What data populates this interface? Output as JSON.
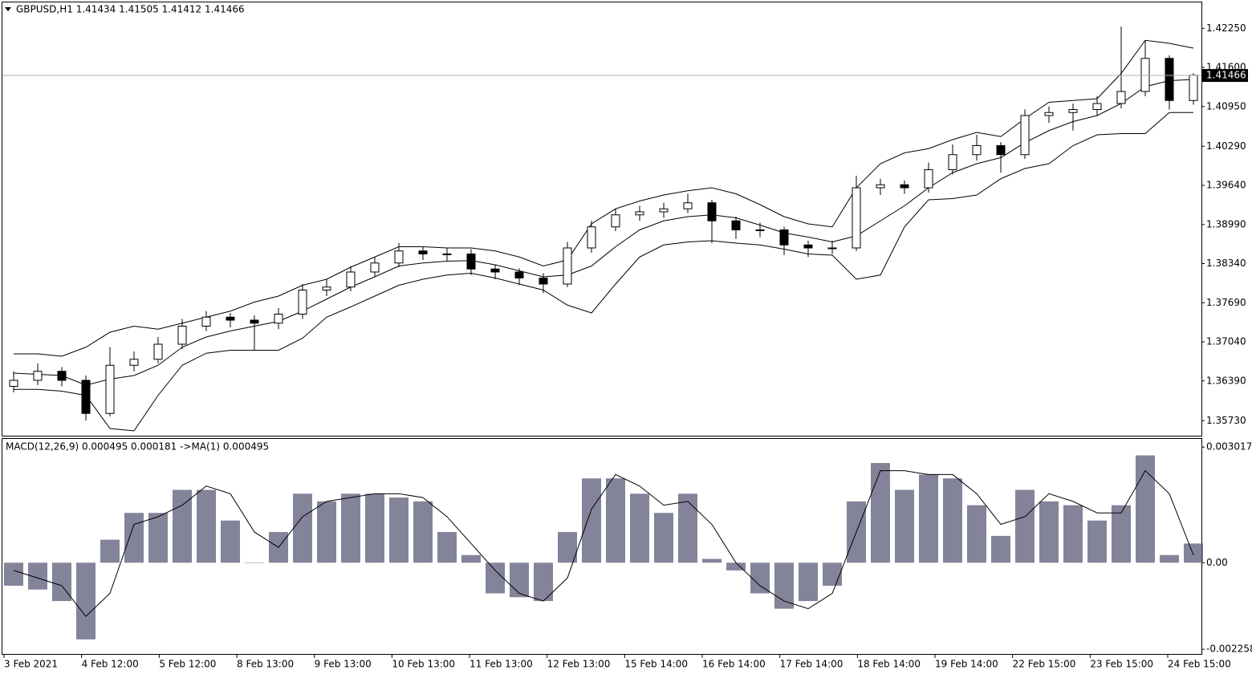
{
  "chart_data": [
    {
      "type": "candlestick",
      "title": "GBPUSD,H1  1.41434 1.41505 1.41412 1.41466",
      "open": [
        1.363,
        1.364,
        1.3655,
        1.364,
        1.3585,
        1.3665,
        1.3675,
        1.37,
        1.373,
        1.3745,
        1.374,
        1.3735,
        1.375,
        1.379,
        1.3795,
        1.382,
        1.3835,
        1.3855,
        1.385,
        1.385,
        1.3825,
        1.382,
        1.381,
        1.38,
        1.386,
        1.3895,
        1.3915,
        1.392,
        1.3925,
        1.3935,
        1.3905,
        1.389,
        1.389,
        1.3865,
        1.386,
        1.386,
        1.396,
        1.3965,
        1.396,
        1.399,
        1.4015,
        1.403,
        1.4015,
        1.408,
        1.4085,
        1.409,
        1.41,
        1.412,
        1.4175,
        1.4105
      ],
      "high": [
        1.3655,
        1.3668,
        1.3662,
        1.3648,
        1.3695,
        1.3688,
        1.3712,
        1.3742,
        1.3755,
        1.3752,
        1.3748,
        1.376,
        1.38,
        1.3808,
        1.383,
        1.3845,
        1.3868,
        1.3862,
        1.386,
        1.3858,
        1.3832,
        1.3826,
        1.3818,
        1.387,
        1.3905,
        1.3925,
        1.393,
        1.3935,
        1.395,
        1.394,
        1.3912,
        1.3902,
        1.3895,
        1.3872,
        1.3872,
        1.398,
        1.3975,
        1.3972,
        1.4002,
        1.4032,
        1.4048,
        1.4036,
        1.409,
        1.4095,
        1.41,
        1.4112,
        1.4228,
        1.4205,
        1.418,
        1.415
      ],
      "low": [
        1.362,
        1.3632,
        1.363,
        1.3573,
        1.358,
        1.3655,
        1.3668,
        1.3692,
        1.3722,
        1.3728,
        1.369,
        1.3725,
        1.3742,
        1.378,
        1.3788,
        1.3812,
        1.3828,
        1.384,
        1.3838,
        1.3815,
        1.3808,
        1.3798,
        1.3785,
        1.3795,
        1.3852,
        1.3888,
        1.3905,
        1.391,
        1.3918,
        1.3868,
        1.3875,
        1.3878,
        1.3848,
        1.3845,
        1.385,
        1.3855,
        1.3948,
        1.395,
        1.3952,
        1.3982,
        1.4005,
        1.3985,
        1.4008,
        1.4068,
        1.4055,
        1.408,
        1.4092,
        1.4112,
        1.409,
        1.4098
      ],
      "close": [
        1.364,
        1.3655,
        1.364,
        1.3585,
        1.3665,
        1.3675,
        1.37,
        1.373,
        1.3745,
        1.374,
        1.3735,
        1.375,
        1.379,
        1.3795,
        1.382,
        1.3835,
        1.3855,
        1.385,
        1.385,
        1.3825,
        1.382,
        1.381,
        1.38,
        1.386,
        1.3895,
        1.3915,
        1.392,
        1.3925,
        1.3935,
        1.3905,
        1.389,
        1.389,
        1.3865,
        1.386,
        1.386,
        1.396,
        1.3965,
        1.396,
        1.399,
        1.4015,
        1.403,
        1.4015,
        1.408,
        1.4085,
        1.409,
        1.41,
        1.412,
        1.4175,
        1.4105,
        1.4147
      ],
      "lines": [
        {
          "color": "#000000",
          "values": [
            1.3684,
            1.3684,
            1.368,
            1.3695,
            1.372,
            1.373,
            1.3725,
            1.3735,
            1.3745,
            1.3755,
            1.377,
            1.378,
            1.3798,
            1.3808,
            1.3828,
            1.3845,
            1.3862,
            1.3862,
            1.386,
            1.386,
            1.3855,
            1.3845,
            1.383,
            1.384,
            1.39,
            1.3925,
            1.3938,
            1.3948,
            1.3955,
            1.396,
            1.395,
            1.3932,
            1.3912,
            1.39,
            1.3895,
            1.396,
            1.4,
            1.4018,
            1.4025,
            1.404,
            1.4052,
            1.4045,
            1.4075,
            1.4102,
            1.4105,
            1.4108,
            1.415,
            1.4205,
            1.42,
            1.4192
          ]
        },
        {
          "color": "#000000",
          "values": [
            1.3652,
            1.365,
            1.3648,
            1.3632,
            1.3642,
            1.3648,
            1.3665,
            1.3695,
            1.3712,
            1.3722,
            1.373,
            1.3738,
            1.3755,
            1.3775,
            1.3795,
            1.3812,
            1.383,
            1.3835,
            1.3838,
            1.3839,
            1.3832,
            1.3822,
            1.3812,
            1.3815,
            1.383,
            1.3862,
            1.389,
            1.3905,
            1.3912,
            1.3915,
            1.391,
            1.3898,
            1.3885,
            1.3878,
            1.387,
            1.388,
            1.3905,
            1.393,
            1.396,
            1.3985,
            1.4,
            1.401,
            1.4035,
            1.4055,
            1.407,
            1.408,
            1.41,
            1.4128,
            1.4138,
            1.414
          ]
        },
        {
          "color": "#000000",
          "values": [
            1.3625,
            1.3625,
            1.3622,
            1.3615,
            1.356,
            1.3556,
            1.3615,
            1.3665,
            1.3685,
            1.369,
            1.369,
            1.369,
            1.371,
            1.3745,
            1.3762,
            1.378,
            1.3798,
            1.3808,
            1.3815,
            1.3818,
            1.381,
            1.38,
            1.379,
            1.3765,
            1.3752,
            1.38,
            1.3845,
            1.3865,
            1.387,
            1.3872,
            1.3868,
            1.3865,
            1.3858,
            1.385,
            1.3848,
            1.3808,
            1.3815,
            1.3895,
            1.394,
            1.3942,
            1.3948,
            1.3975,
            1.3992,
            1.4,
            1.403,
            1.4048,
            1.405,
            1.405,
            1.4085,
            1.4085
          ]
        }
      ],
      "current_price": 1.41466,
      "ylim": [
        1.3548,
        1.4268
      ],
      "yticks": [
        {
          "value": 1.4225,
          "label": "1.42250"
        },
        {
          "value": 1.416,
          "label": "1.41600"
        },
        {
          "value": 1.4095,
          "label": "1.40950"
        },
        {
          "value": 1.4029,
          "label": "1.40290"
        },
        {
          "value": 1.3964,
          "label": "1.39640"
        },
        {
          "value": 1.3899,
          "label": "1.38990"
        },
        {
          "value": 1.3834,
          "label": "1.38340"
        },
        {
          "value": 1.3769,
          "label": "1.37690"
        },
        {
          "value": 1.3704,
          "label": "1.37040"
        },
        {
          "value": 1.3639,
          "label": "1.36390"
        },
        {
          "value": 1.3573,
          "label": "1.35730"
        }
      ]
    },
    {
      "type": "macd",
      "title": "MACD(12,26,9) 0.000495 0.000181  ->MA(1) 0.000495",
      "histogram": {
        "color": "#5a5a78",
        "values": [
          -0.0006,
          -0.0007,
          -0.001,
          -0.002,
          0.0006,
          0.0013,
          0.0013,
          0.0019,
          0.0019,
          0.0011,
          0.0,
          0.0008,
          0.0018,
          0.0016,
          0.0018,
          0.0018,
          0.0017,
          0.0016,
          0.0008,
          0.0002,
          -0.0008,
          -0.0009,
          -0.001,
          0.0008,
          0.0022,
          0.0022,
          0.0018,
          0.0013,
          0.0018,
          0.0001,
          -0.0002,
          -0.0008,
          -0.0012,
          -0.001,
          -0.0006,
          0.0016,
          0.0026,
          0.0019,
          0.0023,
          0.0022,
          0.0015,
          0.0007,
          0.0019,
          0.0016,
          0.0015,
          0.0011,
          0.0015,
          0.0028,
          0.0002,
          0.0005
        ]
      },
      "signal": {
        "color": "#000000",
        "values": [
          -0.0002,
          -0.0004,
          -0.0006,
          -0.0014,
          -0.0008,
          0.001,
          0.0012,
          0.0015,
          0.002,
          0.0018,
          0.0008,
          0.0004,
          0.0012,
          0.0016,
          0.0017,
          0.0018,
          0.0018,
          0.0017,
          0.0012,
          0.0005,
          -0.0002,
          -0.0008,
          -0.001,
          -0.0004,
          0.0014,
          0.0023,
          0.002,
          0.0015,
          0.0016,
          0.001,
          0.0,
          -0.0006,
          -0.001,
          -0.0012,
          -0.0008,
          0.0008,
          0.0024,
          0.0024,
          0.0023,
          0.0023,
          0.0018,
          0.001,
          0.0012,
          0.0018,
          0.0016,
          0.0013,
          0.0013,
          0.0024,
          0.0018,
          0.0002
        ]
      },
      "ylim": [
        -0.00238,
        0.00323
      ],
      "yticks": [
        0.003017,
        {
          "value": 0,
          "label": "0.00"
        },
        -0.002258
      ],
      "x_labels": [
        "3 Feb 2021",
        "4 Feb 12:00",
        "5 Feb 12:00",
        "8 Feb 13:00",
        "9 Feb 13:00",
        "10 Feb 13:00",
        "11 Feb 13:00",
        "12 Feb 13:00",
        "15 Feb 14:00",
        "16 Feb 14:00",
        "17 Feb 14:00",
        "18 Feb 14:00",
        "19 Feb 14:00",
        "22 Feb 15:00",
        "23 Feb 15:00",
        "24 Feb 15:00"
      ]
    }
  ]
}
